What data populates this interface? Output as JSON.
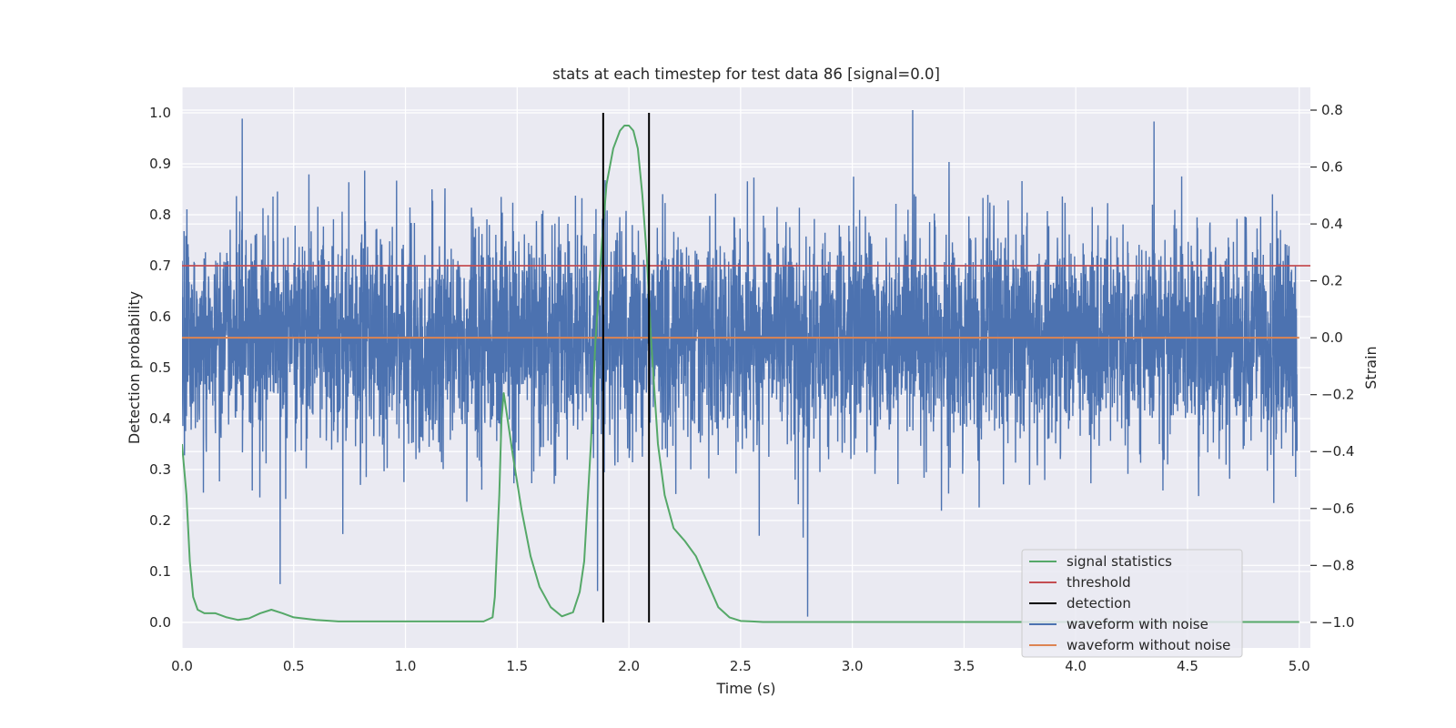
{
  "chart_data": {
    "type": "line",
    "title": "stats at each timestep for test data 86 [signal=0.0]",
    "xlabel": "Time (s)",
    "ylabel_left": "Detection probability",
    "ylabel_right": "Strain",
    "xlim": [
      0.0,
      5.05
    ],
    "ylim_left": [
      -0.05,
      1.05
    ],
    "ylim_right": [
      -1.09,
      0.88
    ],
    "x_ticks": [
      "0.0",
      "0.5",
      "1.0",
      "1.5",
      "2.0",
      "2.5",
      "3.0",
      "3.5",
      "4.0",
      "4.5",
      "5.0"
    ],
    "y_left_ticks": [
      "0.0",
      "0.1",
      "0.2",
      "0.3",
      "0.4",
      "0.5",
      "0.6",
      "0.7",
      "0.8",
      "0.9",
      "1.0"
    ],
    "y_right_ticks": [
      "−1.0",
      "−0.8",
      "−0.6",
      "−0.4",
      "−0.2",
      "0.0",
      "0.2",
      "0.4",
      "0.6",
      "0.8"
    ],
    "grid": true,
    "legend_position": "lower-right",
    "colors": {
      "signal": "#55a868",
      "threshold": "#c44e52",
      "detection": "#000000",
      "noisy": "#4c72b0",
      "clean": "#dd8452",
      "background": "#eaeaf2"
    },
    "threshold": 0.7,
    "detections": [
      1.885,
      2.09
    ],
    "signal_statistics": {
      "x": [
        0.0,
        0.02,
        0.035,
        0.05,
        0.07,
        0.1,
        0.15,
        0.2,
        0.25,
        0.3,
        0.35,
        0.4,
        0.45,
        0.5,
        0.6,
        0.7,
        0.9,
        1.2,
        1.35,
        1.39,
        1.4,
        1.42,
        1.43,
        1.44,
        1.45,
        1.48,
        1.52,
        1.56,
        1.6,
        1.65,
        1.7,
        1.75,
        1.78,
        1.8,
        1.83,
        1.85,
        1.88,
        1.9,
        1.93,
        1.96,
        1.98,
        2.0,
        2.02,
        2.04,
        2.06,
        2.08,
        2.1,
        2.13,
        2.16,
        2.2,
        2.23,
        2.25,
        2.3,
        2.35,
        2.4,
        2.45,
        2.5,
        2.55,
        2.6,
        3.0,
        3.5,
        4.0,
        4.5,
        5.0
      ],
      "y": [
        0.35,
        0.25,
        0.12,
        0.05,
        0.025,
        0.018,
        0.018,
        0.01,
        0.005,
        0.008,
        0.018,
        0.025,
        0.018,
        0.01,
        0.005,
        0.002,
        0.002,
        0.002,
        0.002,
        0.01,
        0.05,
        0.25,
        0.4,
        0.45,
        0.42,
        0.33,
        0.22,
        0.13,
        0.07,
        0.03,
        0.012,
        0.02,
        0.06,
        0.12,
        0.35,
        0.55,
        0.75,
        0.86,
        0.93,
        0.965,
        0.975,
        0.975,
        0.965,
        0.93,
        0.84,
        0.72,
        0.55,
        0.35,
        0.25,
        0.185,
        0.17,
        0.16,
        0.13,
        0.08,
        0.03,
        0.01,
        0.003,
        0.002,
        0.001,
        0.001,
        0.001,
        0.001,
        0.001,
        0.001
      ]
    },
    "waveform_with_noise": {
      "x_range": [
        0.0,
        4.99
      ],
      "amplitude_sd": 0.19,
      "y_range": [
        -0.98,
        0.8
      ],
      "notable_peaks": [
        [
          0.27,
          0.77
        ],
        [
          2.8,
          -1.0
        ],
        [
          3.27,
          0.8
        ],
        [
          4.35,
          0.76
        ],
        [
          0.72,
          -0.69
        ],
        [
          1.86,
          -0.89
        ]
      ]
    },
    "waveform_without_noise": {
      "x": [
        0.0,
        5.0
      ],
      "y": [
        0.0,
        0.0
      ]
    },
    "legend": [
      "signal statistics",
      "threshold",
      "detection",
      "waveform with noise",
      "waveform without noise"
    ]
  }
}
